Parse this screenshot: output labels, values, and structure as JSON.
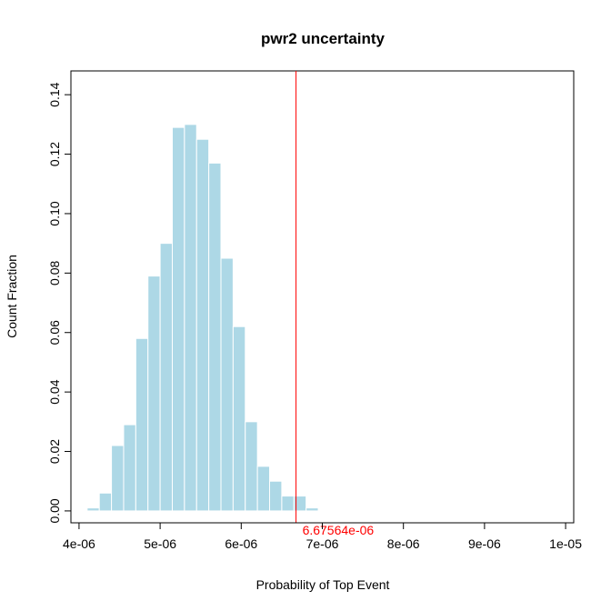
{
  "chart_data": {
    "type": "bar",
    "title": "pwr2 uncertainty",
    "xlabel": "Probability of Top Event",
    "ylabel": "Count Fraction",
    "bin_width": 1.5e-07,
    "bin_start": 4.1e-06,
    "values": [
      0.001,
      0.006,
      0.022,
      0.029,
      0.058,
      0.079,
      0.09,
      0.129,
      0.13,
      0.125,
      0.117,
      0.085,
      0.062,
      0.03,
      0.015,
      0.01,
      0.005,
      0.005,
      0.001
    ],
    "xlim": [
      3.9e-06,
      1.01e-05
    ],
    "ylim": [
      -0.004,
      0.148
    ],
    "x_ticks": [
      4e-06,
      5e-06,
      6e-06,
      7e-06,
      8e-06,
      9e-06,
      1e-05
    ],
    "x_tick_labels": [
      "4e-06",
      "5e-06",
      "6e-06",
      "7e-06",
      "8e-06",
      "9e-06",
      "1e-05"
    ],
    "y_ticks": [
      0,
      0.02,
      0.04,
      0.06,
      0.08,
      0.1,
      0.12,
      0.14
    ],
    "y_tick_labels": [
      "0.00",
      "0.02",
      "0.04",
      "0.06",
      "0.08",
      "0.10",
      "0.12",
      "0.14"
    ],
    "reference_line": {
      "x": 6.67564e-06,
      "label": "6.67564e-06",
      "color": "#ff0000"
    },
    "bar_color": "#add8e6",
    "grid": false,
    "legend": "none"
  }
}
